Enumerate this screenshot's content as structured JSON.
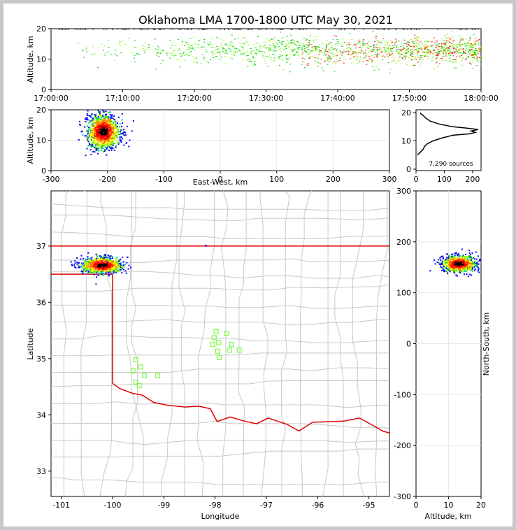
{
  "title": "Oklahoma LMA 1700-1800 UTC May 30, 2021",
  "colors": {
    "border": "#e00000",
    "counties": "#c8c8c8",
    "stations": "#7cfc40",
    "grid": "#e8e8e8"
  },
  "chart_data": [
    {
      "name": "altitude-time",
      "type": "scatter",
      "xlabel": "",
      "ylabel": "Altitude, km",
      "xticks": [
        "17:00:00",
        "17:10:00",
        "17:20:00",
        "17:30:00",
        "17:40:00",
        "17:50:00",
        "18:00:00"
      ],
      "xlim": [
        0,
        60
      ],
      "ylim": [
        0,
        20
      ],
      "yticks": [
        0,
        10,
        20
      ],
      "density_note_colors": [
        "#0000ff",
        "#00c0ff",
        "#00d000",
        "#80ff00",
        "#ffff00",
        "#ff8000",
        "#ff0000",
        "#000000"
      ]
    },
    {
      "name": "altitude-eastwest",
      "type": "scatter",
      "xlabel": "East-West, km",
      "ylabel": "Altitude, km",
      "xlim": [
        -300,
        300
      ],
      "xticks": [
        -300,
        -200,
        -100,
        0,
        100,
        200,
        300
      ],
      "ylim": [
        0,
        20
      ],
      "yticks": [
        0,
        10,
        20
      ],
      "cluster": {
        "x": -208,
        "y": 13
      }
    },
    {
      "name": "altitude-histogram",
      "type": "line",
      "xlim": [
        0,
        230
      ],
      "xticks": [
        0,
        100,
        200
      ],
      "ylim": [
        -0.5,
        21
      ],
      "yticks": [
        0,
        10,
        20
      ],
      "annotation": "7,290 sources",
      "profile": [
        [
          5,
          5
        ],
        [
          15,
          6
        ],
        [
          25,
          7
        ],
        [
          30,
          8
        ],
        [
          40,
          9
        ],
        [
          60,
          10
        ],
        [
          90,
          11
        ],
        [
          130,
          12
        ],
        [
          190,
          12.5
        ],
        [
          210,
          13
        ],
        [
          195,
          13.5
        ],
        [
          220,
          14
        ],
        [
          180,
          14.5
        ],
        [
          130,
          15
        ],
        [
          80,
          16
        ],
        [
          50,
          17
        ],
        [
          35,
          18
        ],
        [
          25,
          19
        ],
        [
          18,
          19.5
        ],
        [
          15,
          20
        ]
      ]
    },
    {
      "name": "plan-view",
      "type": "scatter",
      "xlabel": "Longitude",
      "ylabel": "Latitude",
      "xlim": [
        -101.2,
        -94.6
      ],
      "xticks": [
        -101,
        -100,
        -99,
        -98,
        -97,
        -96,
        -95
      ],
      "ylim": [
        32.55,
        37.98
      ],
      "yticks": [
        33,
        34,
        35,
        36,
        37
      ],
      "cluster": {
        "lon": -100.22,
        "lat": 36.67
      },
      "stations": [
        [
          -99.55,
          34.98
        ],
        [
          -99.45,
          34.85
        ],
        [
          -99.6,
          34.78
        ],
        [
          -99.38,
          34.7
        ],
        [
          -99.55,
          34.58
        ],
        [
          -99.48,
          34.52
        ],
        [
          -99.12,
          34.7
        ],
        [
          -97.98,
          35.48
        ],
        [
          -98.02,
          35.37
        ],
        [
          -98.05,
          35.25
        ],
        [
          -97.93,
          35.28
        ],
        [
          -97.78,
          35.45
        ],
        [
          -97.68,
          35.25
        ],
        [
          -97.72,
          35.15
        ],
        [
          -97.53,
          35.15
        ],
        [
          -97.95,
          35.13
        ],
        [
          -97.92,
          35.02
        ]
      ]
    },
    {
      "name": "altitude-northsouth",
      "type": "scatter",
      "xlabel": "Altitude, km",
      "ylabel": "North-South, km",
      "xlim": [
        0,
        20
      ],
      "xticks": [
        0,
        10,
        20
      ],
      "ylim": [
        -300,
        300
      ],
      "yticks": [
        -300,
        -200,
        -100,
        0,
        100,
        200,
        300
      ],
      "cluster": {
        "x": 13,
        "y": 158
      }
    }
  ]
}
